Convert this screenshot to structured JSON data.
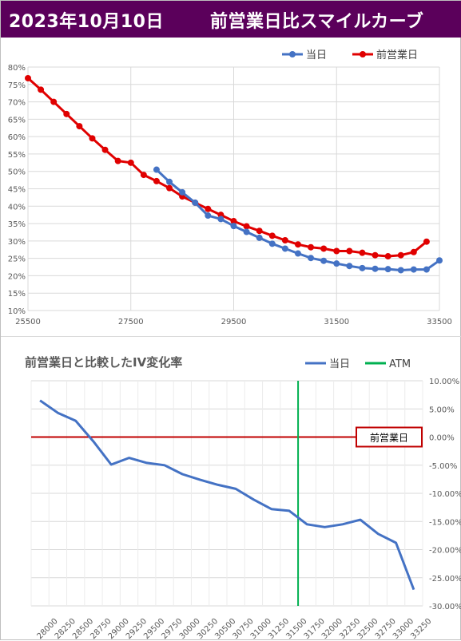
{
  "header": {
    "title": "2023年10月10日",
    "subtitle": "前営業日比スマイルカーブ"
  },
  "colors": {
    "header_bg": "#5b005b",
    "today": "#4472c4",
    "prev": "#e00000",
    "atm": "#00b050",
    "zero_line": "#c00000",
    "grid": "#d9d9d9"
  },
  "chart_data": [
    {
      "type": "line",
      "title": "",
      "xlabel": "",
      "ylabel": "",
      "xlim": [
        25500,
        33500
      ],
      "ylim": [
        0.1,
        0.8
      ],
      "x_ticks": [
        25500,
        27500,
        29500,
        31500,
        33500
      ],
      "y_ticks": [
        0.1,
        0.15,
        0.2,
        0.25,
        0.3,
        0.35,
        0.4,
        0.45,
        0.5,
        0.55,
        0.6,
        0.65,
        0.7,
        0.75,
        0.8
      ],
      "legend_position": "top-right",
      "grid": true,
      "series": [
        {
          "name": "当日",
          "color": "#4472c4",
          "x": [
            28000,
            28250,
            28500,
            28750,
            29000,
            29250,
            29500,
            29750,
            30000,
            30250,
            30500,
            30750,
            31000,
            31250,
            31500,
            31750,
            32000,
            32250,
            32500,
            32750,
            33000,
            33250,
            33500
          ],
          "y": [
            0.505,
            0.47,
            0.44,
            0.41,
            0.373,
            0.363,
            0.343,
            0.326,
            0.309,
            0.292,
            0.278,
            0.264,
            0.251,
            0.243,
            0.235,
            0.228,
            0.222,
            0.22,
            0.219,
            0.216,
            0.218,
            0.218,
            0.244
          ]
        },
        {
          "name": "前営業日",
          "color": "#e00000",
          "x": [
            25500,
            25750,
            26000,
            26250,
            26500,
            26750,
            27000,
            27250,
            27500,
            27750,
            28000,
            28250,
            28500,
            28750,
            29000,
            29250,
            29500,
            29750,
            30000,
            30250,
            30500,
            30750,
            31000,
            31250,
            31500,
            31750,
            32000,
            32250,
            32500,
            32750,
            33000,
            33250
          ],
          "y": [
            0.768,
            0.735,
            0.7,
            0.665,
            0.63,
            0.595,
            0.562,
            0.53,
            0.525,
            0.49,
            0.472,
            0.452,
            0.428,
            0.41,
            0.392,
            0.375,
            0.357,
            0.342,
            0.329,
            0.315,
            0.302,
            0.29,
            0.282,
            0.278,
            0.271,
            0.271,
            0.266,
            0.259,
            0.256,
            0.259,
            0.268,
            0.298
          ]
        }
      ]
    },
    {
      "type": "line",
      "title": "前営業日と比較したIV変化率",
      "xlabel": "",
      "ylabel": "",
      "ylim": [
        -0.3,
        0.1
      ],
      "y_ticks": [
        0.1,
        0.05,
        0.0,
        -0.05,
        -0.1,
        -0.15,
        -0.2,
        -0.25,
        -0.3
      ],
      "categories": [
        "28000",
        "28250",
        "28500",
        "28750",
        "29000",
        "29250",
        "29500",
        "29750",
        "30000",
        "30250",
        "30500",
        "30750",
        "31000",
        "31250",
        "31500",
        "31750",
        "32000",
        "32250",
        "32500",
        "32750",
        "33000",
        "33250"
      ],
      "legend_position": "top-right",
      "grid": true,
      "series": [
        {
          "name": "当日",
          "color": "#4472c4",
          "values": [
            0.065,
            0.043,
            0.029,
            -0.008,
            -0.049,
            -0.037,
            -0.046,
            -0.05,
            -0.066,
            -0.076,
            -0.085,
            -0.092,
            -0.111,
            -0.128,
            -0.131,
            -0.155,
            -0.16,
            -0.155,
            -0.147,
            -0.172,
            -0.188,
            -0.271
          ]
        }
      ],
      "atm": {
        "name": "ATM",
        "category": "31500",
        "color": "#00b050"
      },
      "reference": {
        "label": "前営業日",
        "value": 0.0
      }
    }
  ]
}
